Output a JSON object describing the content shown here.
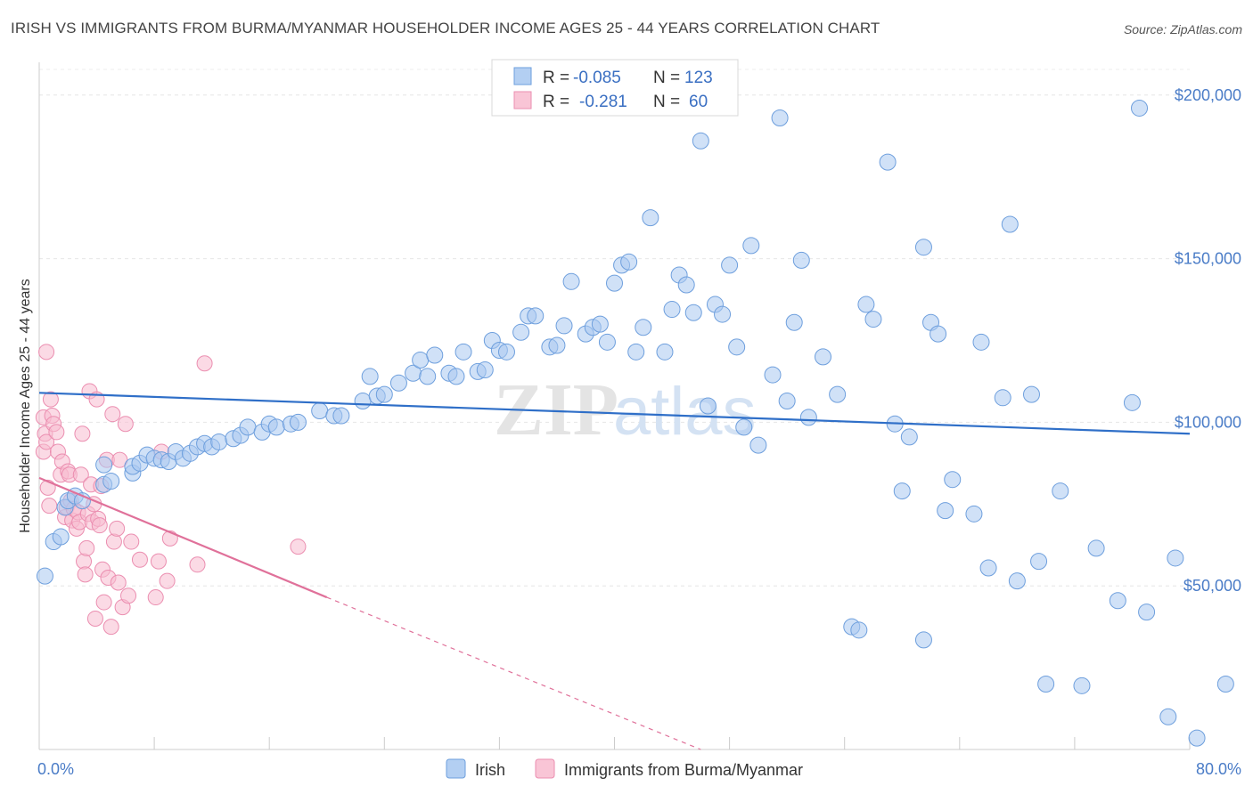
{
  "title": "IRISH VS IMMIGRANTS FROM BURMA/MYANMAR HOUSEHOLDER INCOME AGES 25 - 44 YEARS CORRELATION CHART",
  "source": "Source: ZipAtlas.com",
  "watermark": {
    "zip": "ZIP",
    "atlas": "atlas"
  },
  "legend": {
    "rows": [
      {
        "r_label": "R =",
        "r_value": "-0.085",
        "n_label": "N =",
        "n_value": "123"
      },
      {
        "r_label": "R =",
        "r_value": "-0.281",
        "n_label": "N =",
        "n_value": "60"
      }
    ]
  },
  "chart_data": {
    "type": "scatter",
    "ylabel": "Householder Income Ages 25 - 44 years",
    "x_tick_labels": [
      "0.0%",
      "80.0%"
    ],
    "xlim": [
      0,
      80
    ],
    "ylim": [
      0,
      210000
    ],
    "y_ticks": [
      {
        "value": 50000,
        "label": "$50,000"
      },
      {
        "value": 100000,
        "label": "$100,000"
      },
      {
        "value": 150000,
        "label": "$150,000"
      },
      {
        "value": 200000,
        "label": "$200,000"
      }
    ],
    "colors": {
      "irish_fill": "#a9c9f0",
      "irish_stroke": "#6e9fdd",
      "irish_line": "#2f6fc8",
      "burma_fill": "#f7bcd0",
      "burma_stroke": "#eb8eb0",
      "burma_line": "#e0719a"
    },
    "series": [
      {
        "name": "Irish",
        "trend": {
          "x": [
            0,
            80
          ],
          "y": [
            109000,
            96500
          ]
        },
        "points": [
          [
            0.4,
            53000
          ],
          [
            1.0,
            63500
          ],
          [
            1.5,
            65000
          ],
          [
            1.8,
            74000
          ],
          [
            2.0,
            76000
          ],
          [
            2.5,
            77500
          ],
          [
            3.0,
            76000
          ],
          [
            4.5,
            81000
          ],
          [
            4.5,
            87000
          ],
          [
            5.0,
            82000
          ],
          [
            6.5,
            84500
          ],
          [
            6.5,
            86500
          ],
          [
            7.0,
            87500
          ],
          [
            7.5,
            90000
          ],
          [
            8.0,
            89000
          ],
          [
            8.5,
            88500
          ],
          [
            9.0,
            88000
          ],
          [
            9.5,
            91000
          ],
          [
            10.0,
            89000
          ],
          [
            10.5,
            90500
          ],
          [
            11.0,
            92500
          ],
          [
            11.5,
            93500
          ],
          [
            12.0,
            92500
          ],
          [
            12.5,
            94000
          ],
          [
            13.5,
            95000
          ],
          [
            14.0,
            96000
          ],
          [
            14.5,
            98500
          ],
          [
            15.5,
            97000
          ],
          [
            16.0,
            99500
          ],
          [
            16.5,
            98500
          ],
          [
            17.5,
            99500
          ],
          [
            18.0,
            100000
          ],
          [
            19.5,
            103500
          ],
          [
            20.5,
            102000
          ],
          [
            21.0,
            102000
          ],
          [
            22.5,
            106500
          ],
          [
            23.0,
            114000
          ],
          [
            23.5,
            108000
          ],
          [
            24.0,
            108500
          ],
          [
            25.0,
            112000
          ],
          [
            26.0,
            115000
          ],
          [
            26.5,
            119000
          ],
          [
            27.0,
            114000
          ],
          [
            27.5,
            120500
          ],
          [
            28.5,
            115000
          ],
          [
            29.0,
            114000
          ],
          [
            29.5,
            121500
          ],
          [
            30.5,
            115500
          ],
          [
            31.0,
            116000
          ],
          [
            31.5,
            125000
          ],
          [
            32.0,
            122000
          ],
          [
            32.5,
            121500
          ],
          [
            33.5,
            127500
          ],
          [
            34.0,
            132500
          ],
          [
            34.5,
            132500
          ],
          [
            35.5,
            123000
          ],
          [
            36.0,
            123500
          ],
          [
            36.5,
            129500
          ],
          [
            37.0,
            143000
          ],
          [
            38.0,
            127000
          ],
          [
            38.5,
            129000
          ],
          [
            39.0,
            130000
          ],
          [
            39.5,
            124500
          ],
          [
            40.0,
            142500
          ],
          [
            40.5,
            148000
          ],
          [
            41.0,
            149000
          ],
          [
            41.5,
            121500
          ],
          [
            42.0,
            129000
          ],
          [
            42.5,
            162500
          ],
          [
            43.5,
            121500
          ],
          [
            44.0,
            134500
          ],
          [
            44.5,
            145000
          ],
          [
            45.0,
            142000
          ],
          [
            45.5,
            133500
          ],
          [
            46.0,
            186000
          ],
          [
            46.5,
            105000
          ],
          [
            47.0,
            136000
          ],
          [
            47.5,
            133000
          ],
          [
            48.0,
            148000
          ],
          [
            48.5,
            123000
          ],
          [
            49.0,
            98500
          ],
          [
            49.5,
            154000
          ],
          [
            50.0,
            93000
          ],
          [
            51.0,
            114500
          ],
          [
            51.5,
            193000
          ],
          [
            52.0,
            106500
          ],
          [
            52.5,
            130500
          ],
          [
            53.0,
            149500
          ],
          [
            53.5,
            101500
          ],
          [
            54.5,
            120000
          ],
          [
            55.5,
            108500
          ],
          [
            56.5,
            37500
          ],
          [
            57.0,
            36500
          ],
          [
            57.5,
            136000
          ],
          [
            58.0,
            131500
          ],
          [
            59.0,
            179500
          ],
          [
            59.5,
            99500
          ],
          [
            60.0,
            79000
          ],
          [
            60.5,
            95500
          ],
          [
            61.5,
            33500
          ],
          [
            61.5,
            153500
          ],
          [
            62.0,
            130500
          ],
          [
            62.5,
            127000
          ],
          [
            63.0,
            73000
          ],
          [
            63.5,
            82500
          ],
          [
            65.0,
            72000
          ],
          [
            65.5,
            124500
          ],
          [
            66.0,
            55500
          ],
          [
            67.0,
            107500
          ],
          [
            67.5,
            160500
          ],
          [
            68.0,
            51500
          ],
          [
            69.0,
            108500
          ],
          [
            69.5,
            57500
          ],
          [
            70.0,
            20000
          ],
          [
            71.0,
            79000
          ],
          [
            72.5,
            19500
          ],
          [
            73.5,
            61500
          ],
          [
            75.0,
            45500
          ],
          [
            76.0,
            106000
          ],
          [
            76.5,
            196000
          ],
          [
            77.0,
            42000
          ],
          [
            78.5,
            10000
          ],
          [
            79.0,
            58500
          ],
          [
            80.5,
            3500
          ],
          [
            82.5,
            20000
          ]
        ]
      },
      {
        "name": "Immigrants from Burma/Myanmar",
        "trend": {
          "x": [
            0,
            20
          ],
          "y": [
            83000,
            46500
          ]
        },
        "trend_dashed": {
          "x": [
            20,
            46
          ],
          "y": [
            46500,
            0
          ]
        },
        "points": [
          [
            0.3,
            101500
          ],
          [
            0.3,
            91000
          ],
          [
            0.4,
            96500
          ],
          [
            0.5,
            94000
          ],
          [
            0.5,
            121500
          ],
          [
            0.6,
            80000
          ],
          [
            0.7,
            74500
          ],
          [
            0.8,
            107000
          ],
          [
            0.9,
            102000
          ],
          [
            1.0,
            99500
          ],
          [
            1.2,
            97000
          ],
          [
            1.3,
            91000
          ],
          [
            1.5,
            84000
          ],
          [
            1.6,
            88000
          ],
          [
            1.8,
            71000
          ],
          [
            1.9,
            74000
          ],
          [
            2.0,
            85000
          ],
          [
            2.1,
            84000
          ],
          [
            2.2,
            76000
          ],
          [
            2.3,
            70000
          ],
          [
            2.4,
            73500
          ],
          [
            2.6,
            67500
          ],
          [
            2.7,
            72500
          ],
          [
            2.8,
            69500
          ],
          [
            2.9,
            84000
          ],
          [
            3.0,
            96500
          ],
          [
            3.1,
            57500
          ],
          [
            3.2,
            53500
          ],
          [
            3.3,
            61500
          ],
          [
            3.4,
            72000
          ],
          [
            3.5,
            109500
          ],
          [
            3.6,
            81000
          ],
          [
            3.7,
            69500
          ],
          [
            3.8,
            75000
          ],
          [
            3.9,
            40000
          ],
          [
            4.0,
            107000
          ],
          [
            4.1,
            70500
          ],
          [
            4.2,
            68500
          ],
          [
            4.3,
            80500
          ],
          [
            4.4,
            55000
          ],
          [
            4.5,
            45000
          ],
          [
            4.7,
            88500
          ],
          [
            4.8,
            52500
          ],
          [
            5.0,
            37500
          ],
          [
            5.1,
            102500
          ],
          [
            5.2,
            63500
          ],
          [
            5.4,
            67500
          ],
          [
            5.5,
            51000
          ],
          [
            5.6,
            88500
          ],
          [
            5.8,
            43500
          ],
          [
            6.0,
            99500
          ],
          [
            6.2,
            47000
          ],
          [
            6.4,
            63500
          ],
          [
            7.0,
            58000
          ],
          [
            8.1,
            46500
          ],
          [
            8.3,
            57500
          ],
          [
            8.5,
            91000
          ],
          [
            8.9,
            51500
          ],
          [
            9.1,
            64500
          ],
          [
            11.0,
            56500
          ],
          [
            11.5,
            118000
          ],
          [
            18.0,
            62000
          ]
        ]
      }
    ]
  },
  "bottom_legend": {
    "items": [
      {
        "label": "Irish"
      },
      {
        "label": "Immigrants from Burma/Myanmar"
      }
    ]
  }
}
